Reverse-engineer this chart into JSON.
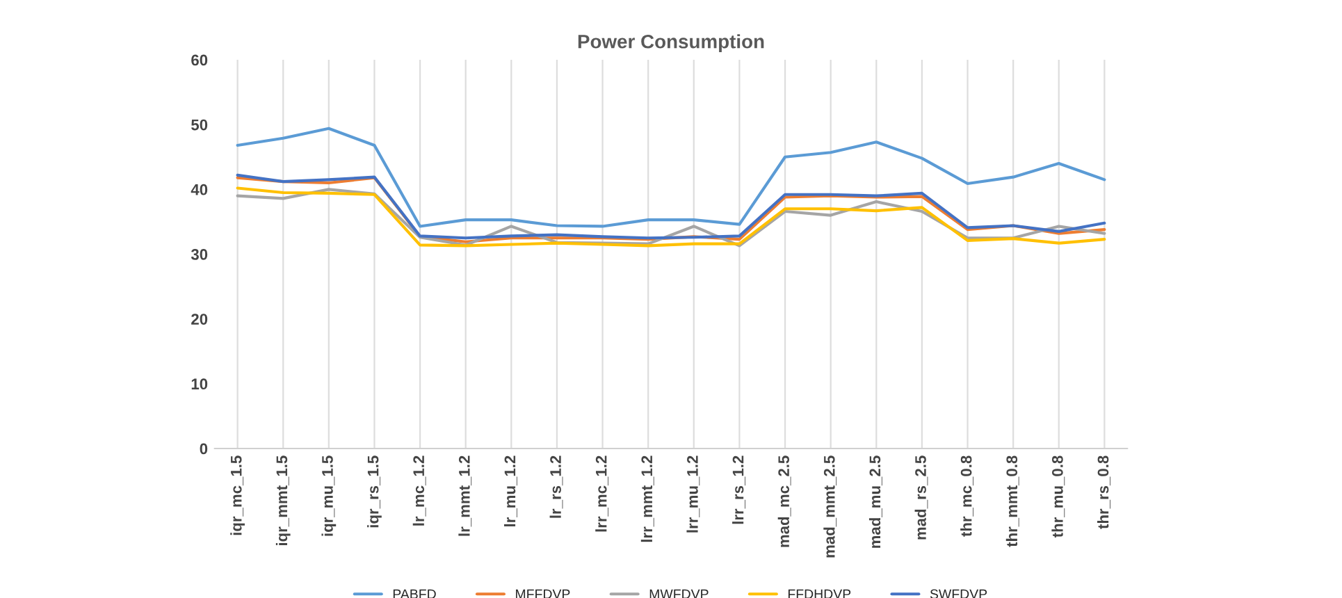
{
  "chart_data": {
    "type": "line",
    "title": "Power Consumption",
    "categories": [
      "iqr_mc_1.5",
      "iqr_mmt_1.5",
      "iqr_mu_1.5",
      "iqr_rs_1.5",
      "lr_mc_1.2",
      "lr_mmt_1.2",
      "lr_mu_1.2",
      "lr_rs_1.2",
      "lrr_mc_1.2",
      "lrr_mmt_1.2",
      "lrr_mu_1.2",
      "lrr_rs_1.2",
      "mad_mc_2.5",
      "mad_mmt_2.5",
      "mad_mu_2.5",
      "mad_rs_2.5",
      "thr_mc_0.8",
      "thr_mmt_0.8",
      "thr_mu_0.8",
      "thr_rs_0.8"
    ],
    "series": [
      {
        "name": "PABFD",
        "color": "#5b9bd5",
        "values": [
          46.8,
          47.9,
          49.4,
          46.8,
          34.3,
          35.3,
          35.3,
          34.4,
          34.3,
          35.3,
          35.3,
          34.6,
          45.0,
          45.7,
          47.3,
          44.8,
          40.9,
          41.9,
          44.0,
          41.5
        ]
      },
      {
        "name": "MFFDVP",
        "color": "#ed7d31",
        "values": [
          41.8,
          41.2,
          41.0,
          41.8,
          32.7,
          31.9,
          32.5,
          null,
          32.5,
          32.3,
          32.7,
          32.3,
          38.8,
          39.0,
          38.8,
          38.9,
          33.8,
          34.4,
          33.2,
          33.8
        ]
      },
      {
        "name": "MWFDVP",
        "color": "#a5a5a5",
        "values": [
          39.0,
          38.6,
          40.0,
          39.3,
          32.6,
          31.4,
          34.3,
          31.8,
          31.7,
          31.6,
          34.3,
          31.3,
          36.6,
          36.0,
          38.1,
          36.6,
          32.5,
          32.5,
          34.3,
          33.2
        ]
      },
      {
        "name": "FFDHDVP",
        "color": "#ffc000",
        "values": [
          40.2,
          39.5,
          39.4,
          39.2,
          31.4,
          31.3,
          31.5,
          31.7,
          31.5,
          31.3,
          31.6,
          31.6,
          37.0,
          37.0,
          36.7,
          37.2,
          32.1,
          32.4,
          31.7,
          32.3
        ]
      },
      {
        "name": "SWFDVP",
        "color": "#4472c4",
        "values": [
          42.2,
          41.2,
          41.5,
          41.9,
          32.8,
          32.5,
          32.8,
          33.0,
          32.7,
          32.5,
          32.6,
          32.8,
          39.2,
          39.2,
          39.0,
          39.4,
          34.1,
          34.4,
          33.5,
          34.8
        ]
      }
    ],
    "ylim": [
      0,
      60
    ],
    "yticks": [
      0,
      10,
      20,
      30,
      40,
      50,
      60
    ],
    "grid": "x",
    "legend": "bottom",
    "marker": "none",
    "line_style": "solid"
  }
}
